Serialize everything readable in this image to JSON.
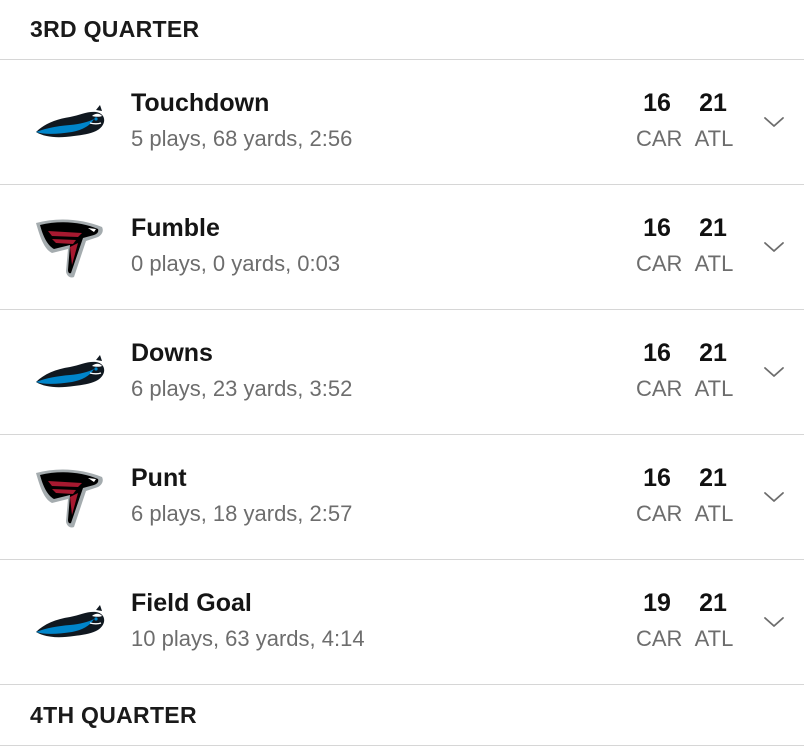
{
  "quarters": {
    "q3_label": "3RD QUARTER",
    "q4_label": "4TH QUARTER"
  },
  "teams": {
    "home_abbr": "CAR",
    "away_abbr": "ATL"
  },
  "drives": [
    {
      "team_icon": "panthers-logo-icon",
      "result": "Touchdown",
      "summary": "5 plays, 68 yards, 2:56",
      "score_car": "16",
      "score_atl": "21",
      "abbr_car": "CAR",
      "abbr_atl": "ATL"
    },
    {
      "team_icon": "falcons-logo-icon",
      "result": "Fumble",
      "summary": "0 plays, 0 yards, 0:03",
      "score_car": "16",
      "score_atl": "21",
      "abbr_car": "CAR",
      "abbr_atl": "ATL"
    },
    {
      "team_icon": "panthers-logo-icon",
      "result": "Downs",
      "summary": "6 plays, 23 yards, 3:52",
      "score_car": "16",
      "score_atl": "21",
      "abbr_car": "CAR",
      "abbr_atl": "ATL"
    },
    {
      "team_icon": "falcons-logo-icon",
      "result": "Punt",
      "summary": "6 plays, 18 yards, 2:57",
      "score_car": "16",
      "score_atl": "21",
      "abbr_car": "CAR",
      "abbr_atl": "ATL"
    },
    {
      "team_icon": "panthers-logo-icon",
      "result": "Field Goal",
      "summary": "10 plays, 63 yards, 4:14",
      "score_car": "19",
      "score_atl": "21",
      "abbr_car": "CAR",
      "abbr_atl": "ATL"
    }
  ],
  "colors": {
    "panthers_blue": "#0085ca",
    "panthers_black": "#101820",
    "falcons_red": "#a71930",
    "falcons_black": "#000000",
    "falcons_silver": "#a5acaf",
    "muted_text": "#6d6d6d",
    "divider": "#d6d6d6"
  }
}
